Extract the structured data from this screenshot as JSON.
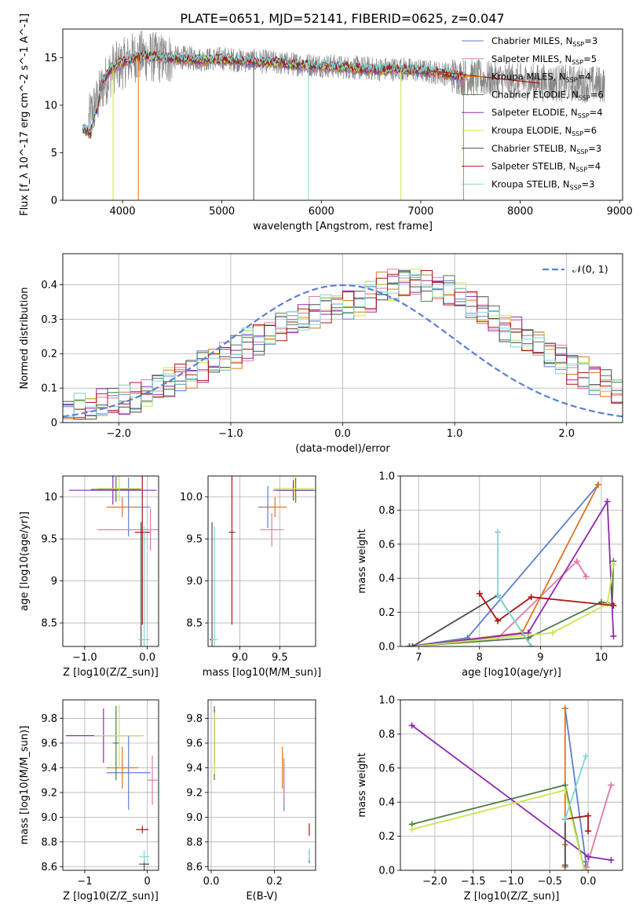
{
  "title": "PLATE=0651, MJD=52141, FIBERID=0625, z=0.047",
  "colors": {
    "Chabrier MILES": "#5b7fd6",
    "Salpeter MILES": "#e07aa8",
    "Kroupa MILES": "#e0731e",
    "Chabrier ELODIE": "#4f7a4f",
    "Salpeter ELODIE": "#8e2bb0",
    "Kroupa ELODIE": "#c9e84a",
    "Chabrier STELIB": "#4d4d4d",
    "Salpeter STELIB": "#b01414",
    "Kroupa STELIB": "#7fd6d9",
    "gauss": "#5b7fd6"
  },
  "chart_data": [
    {
      "type": "line",
      "id": "spectrum",
      "title": "PLATE=0651, MJD=52141, FIBERID=0625, z=0.047",
      "xlabel": "wavelength [Angstrom, rest frame]",
      "ylabel": "Flux [f_λ 10^-17 erg cm^-2 s^-1 A^-1]",
      "xlim": [
        3400,
        9030
      ],
      "ylim": [
        0,
        18
      ],
      "xticks": [
        4000,
        5000,
        6000,
        7000,
        8000,
        9000
      ],
      "yticks": [
        0,
        5,
        10,
        15
      ],
      "grid": false,
      "legend_position": "right",
      "legend": [
        {
          "name": "Chabrier MILES",
          "nssp": "3"
        },
        {
          "name": "Salpeter MILES",
          "nssp": "5"
        },
        {
          "name": "Kroupa MILES",
          "nssp": "4"
        },
        {
          "name": "Chabrier ELODIE",
          "nssp": "6"
        },
        {
          "name": "Salpeter ELODIE",
          "nssp": "4"
        },
        {
          "name": "Kroupa ELODIE",
          "nssp": "6"
        },
        {
          "name": "Chabrier STELIB",
          "nssp": "3"
        },
        {
          "name": "Salpeter STELIB",
          "nssp": "4"
        },
        {
          "name": "Kroupa STELIB",
          "nssp": "3"
        }
      ],
      "data_wavelength": [
        3650,
        3700,
        3750,
        3800,
        3900,
        4000,
        4100,
        4200,
        4400,
        4600,
        4800,
        5000,
        5200,
        5400,
        5600,
        5800,
        6000,
        6200,
        6400,
        6600,
        6800,
        7000,
        7200,
        7400,
        7600,
        7800,
        8000,
        8200,
        8400,
        8800
      ],
      "data_flux": [
        8.0,
        9.5,
        10.5,
        12.0,
        13.8,
        14.3,
        15.0,
        15.2,
        14.9,
        15.0,
        14.8,
        14.9,
        14.7,
        14.6,
        14.4,
        14.3,
        14.2,
        14.0,
        13.9,
        13.8,
        13.8,
        13.6,
        13.4,
        13.0,
        12.8,
        12.6,
        12.5,
        12.4,
        12.3,
        12.2
      ],
      "model_fit_range": [
        3600,
        7450
      ],
      "model_wavelength": [
        3620,
        3680,
        3700,
        3750,
        3800,
        3900,
        4000,
        4200,
        4400,
        4600,
        4800,
        5000,
        5200,
        5400,
        5600,
        5800,
        6000,
        6200,
        6400,
        6600,
        6800,
        7000,
        7200,
        7400
      ],
      "model_flux": [
        7.5,
        7.0,
        8.0,
        10.0,
        12.5,
        14.0,
        14.5,
        15.2,
        15.0,
        14.8,
        14.7,
        14.8,
        14.6,
        14.5,
        14.4,
        14.2,
        14.1,
        14.0,
        13.8,
        13.7,
        13.8,
        13.6,
        13.4,
        13.0
      ]
    },
    {
      "type": "step",
      "id": "residuals",
      "xlabel": "(data-model)/error",
      "ylabel": "Normed distribution",
      "xlim": [
        -2.5,
        2.5
      ],
      "ylim": [
        0,
        0.49
      ],
      "xticks": [
        -2,
        -1,
        0,
        1,
        2
      ],
      "yticks": [
        0.0,
        0.1,
        0.2,
        0.3,
        0.4
      ],
      "grid": true,
      "legend_position": "upper right",
      "reference": {
        "label": "𝒩(0, 1)",
        "mean": 0,
        "sigma": 1
      },
      "bin_width": 0.1,
      "hist": {
        "x_start": -2.5,
        "values": [
          0.035,
          0.04,
          0.045,
          0.05,
          0.055,
          0.065,
          0.075,
          0.085,
          0.1,
          0.115,
          0.13,
          0.145,
          0.16,
          0.175,
          0.19,
          0.205,
          0.225,
          0.24,
          0.26,
          0.275,
          0.29,
          0.305,
          0.32,
          0.335,
          0.34,
          0.345,
          0.35,
          0.37,
          0.39,
          0.4,
          0.41,
          0.41,
          0.4,
          0.39,
          0.38,
          0.36,
          0.34,
          0.32,
          0.3,
          0.28,
          0.26,
          0.245,
          0.225,
          0.2,
          0.185,
          0.16,
          0.145,
          0.125,
          0.11,
          0.095
        ]
      }
    },
    {
      "type": "errorbar",
      "id": "z-age",
      "xlabel": "Z [log10(Z/Z_sun)]",
      "ylabel": "age [log10(age/yr)]",
      "xlim": [
        -1.35,
        0.18
      ],
      "ylim": [
        8.22,
        10.25
      ],
      "xticks": [
        -1,
        0
      ],
      "yticks": [
        8.5,
        9.0,
        9.5,
        10.0
      ],
      "grid": true,
      "points": [
        {
          "series": "Chabrier MILES",
          "x": -0.3,
          "y": 9.88,
          "xerr": 0.35,
          "yerr": 0.35
        },
        {
          "series": "Salpeter MILES",
          "x": 0.05,
          "y": 9.61,
          "xerr": 0.85,
          "yerr": 0.25
        },
        {
          "series": "Kroupa MILES",
          "x": -0.4,
          "y": 9.88,
          "xerr": 0.25,
          "yerr": 0.12
        },
        {
          "series": "Chabrier ELODIE",
          "x": -0.5,
          "y": 10.09,
          "xerr": 0.4,
          "yerr": 0.15
        },
        {
          "series": "Salpeter ELODIE",
          "x": -0.55,
          "y": 10.08,
          "xerr": 0.7,
          "yerr": 0.17
        },
        {
          "series": "Kroupa ELODIE",
          "x": -0.45,
          "y": 10.1,
          "xerr": 0.35,
          "yerr": 0.15
        },
        {
          "series": "Chabrier STELIB",
          "x": -0.1,
          "y": 8.3,
          "xerr": 0.03,
          "yerr": 1.4
        },
        {
          "series": "Salpeter STELIB",
          "x": -0.08,
          "y": 9.58,
          "xerr": 0.12,
          "yerr": 1.1
        },
        {
          "series": "Kroupa STELIB",
          "x": -0.05,
          "y": 8.3,
          "xerr": 0.09,
          "yerr": 1.35
        }
      ]
    },
    {
      "type": "errorbar",
      "id": "mass-age",
      "xlabel": "mass [log10(M/M_sun)]",
      "ylabel": "",
      "xlim": [
        8.6,
        9.95
      ],
      "ylim": [
        8.22,
        10.25
      ],
      "xticks": [
        9.0,
        9.5
      ],
      "yticks": [
        8.5,
        9.0,
        9.5,
        10.0
      ],
      "grid": true,
      "points": [
        {
          "series": "Chabrier MILES",
          "x": 9.35,
          "y": 9.88,
          "xerr": 0.12,
          "yerr": 0.25
        },
        {
          "series": "Salpeter MILES",
          "x": 9.4,
          "y": 9.61,
          "xerr": 0.15,
          "yerr": 0.2
        },
        {
          "series": "Kroupa MILES",
          "x": 9.44,
          "y": 9.88,
          "xerr": 0.15,
          "yerr": 0.12
        },
        {
          "series": "Chabrier ELODIE",
          "x": 9.7,
          "y": 10.08,
          "xerr": 0.25,
          "yerr": 0.15
        },
        {
          "series": "Salpeter ELODIE",
          "x": 9.67,
          "y": 10.08,
          "xerr": 0.25,
          "yerr": 0.12
        },
        {
          "series": "Kroupa ELODIE",
          "x": 9.68,
          "y": 10.1,
          "xerr": 0.25,
          "yerr": 0.15
        },
        {
          "series": "Chabrier STELIB",
          "x": 8.65,
          "y": 8.3,
          "xerr": 0.03,
          "yerr": 1.4
        },
        {
          "series": "Salpeter STELIB",
          "x": 8.9,
          "y": 9.58,
          "xerr": 0.04,
          "yerr": 1.1
        },
        {
          "series": "Kroupa STELIB",
          "x": 8.68,
          "y": 8.3,
          "xerr": 0.04,
          "yerr": 1.35
        }
      ]
    },
    {
      "type": "line",
      "id": "age-weight",
      "xlabel": "age [log10(age/yr)]",
      "ylabel": "mass weight",
      "xlim": [
        6.7,
        10.35
      ],
      "ylim": [
        0,
        1.0
      ],
      "xticks": [
        7,
        8,
        9,
        10
      ],
      "yticks": [
        0.0,
        0.2,
        0.4,
        0.6,
        0.8,
        1.0
      ],
      "grid": true,
      "series": [
        {
          "name": "Chabrier MILES",
          "x": [
            6.85,
            7.8,
            9.95
          ],
          "y": [
            0.0,
            0.05,
            0.95
          ]
        },
        {
          "name": "Salpeter MILES",
          "x": [
            6.9,
            8.3,
            9.6,
            9.75
          ],
          "y": [
            0.0,
            0.05,
            0.5,
            0.41
          ]
        },
        {
          "name": "Kroupa MILES",
          "x": [
            6.85,
            8.7,
            9.95
          ],
          "y": [
            0.0,
            0.08,
            0.95
          ]
        },
        {
          "name": "Chabrier ELODIE",
          "x": [
            6.85,
            8.8,
            10.0,
            10.18,
            10.2
          ],
          "y": [
            0.0,
            0.05,
            0.26,
            0.25,
            0.5
          ]
        },
        {
          "name": "Salpeter ELODIE",
          "x": [
            6.85,
            8.8,
            10.1,
            10.2
          ],
          "y": [
            0.0,
            0.08,
            0.85,
            0.06
          ]
        },
        {
          "name": "Kroupa ELODIE",
          "x": [
            6.9,
            9.2,
            10.1,
            10.2
          ],
          "y": [
            0.0,
            0.08,
            0.25,
            0.48
          ]
        },
        {
          "name": "Chabrier STELIB",
          "x": [
            6.9,
            8.3,
            8.85
          ],
          "y": [
            0.0,
            0.3,
            0.0
          ]
        },
        {
          "name": "Salpeter STELIB",
          "x": [
            8.0,
            8.3,
            8.85,
            10.2
          ],
          "y": [
            0.31,
            0.15,
            0.29,
            0.24
          ]
        },
        {
          "name": "Kroupa STELIB",
          "x": [
            8.3,
            8.3,
            8.85
          ],
          "y": [
            0.67,
            0.3,
            0.0
          ]
        }
      ]
    },
    {
      "type": "errorbar",
      "id": "z-mass",
      "xlabel": "Z [log10(Z/Z_sun)]",
      "ylabel": "mass [log10(M/M_sun)]",
      "xlim": [
        -1.35,
        0.18
      ],
      "ylim": [
        8.57,
        9.95
      ],
      "xticks": [
        -1,
        0
      ],
      "yticks": [
        8.6,
        8.8,
        9.0,
        9.2,
        9.4,
        9.6,
        9.8
      ],
      "grid": true,
      "points": [
        {
          "series": "Chabrier MILES",
          "x": -0.3,
          "y": 9.36,
          "xerr": 0.35,
          "yerr": 0.3
        },
        {
          "series": "Salpeter MILES",
          "x": 0.08,
          "y": 9.3,
          "xerr": 0.08,
          "yerr": 0.2
        },
        {
          "series": "Kroupa MILES",
          "x": -0.4,
          "y": 9.4,
          "xerr": 0.25,
          "yerr": 0.17
        },
        {
          "series": "Chabrier ELODIE",
          "x": -0.5,
          "y": 9.6,
          "xerr": 0.05,
          "yerr": 0.3
        },
        {
          "series": "Salpeter ELODIE",
          "x": -0.7,
          "y": 9.66,
          "xerr": 0.6,
          "yerr": 0.22
        },
        {
          "series": "Kroupa ELODIE",
          "x": -0.45,
          "y": 9.66,
          "xerr": 0.4,
          "yerr": 0.25
        },
        {
          "series": "Chabrier STELIB",
          "x": -0.05,
          "y": 8.62,
          "xerr": 0.08,
          "yerr": 0.05
        },
        {
          "series": "Salpeter STELIB",
          "x": -0.08,
          "y": 8.9,
          "xerr": 0.1,
          "yerr": 0.03
        },
        {
          "series": "Kroupa STELIB",
          "x": -0.05,
          "y": 8.68,
          "xerr": 0.08,
          "yerr": 0.05
        }
      ]
    },
    {
      "type": "errorbar",
      "id": "ebv-mass",
      "xlabel": "E(B-V)",
      "ylabel": "",
      "xlim": [
        -0.01,
        0.33
      ],
      "ylim": [
        8.57,
        9.95
      ],
      "xticks": [
        0.0,
        0.2
      ],
      "yticks": [
        8.6,
        8.8,
        9.0,
        9.2,
        9.4,
        9.6,
        9.8
      ],
      "grid": true,
      "points": [
        {
          "series": "Chabrier MILES",
          "x": 0.23,
          "y": 9.25,
          "xerr": 0.0,
          "yerr": 0.2
        },
        {
          "series": "Salpeter MILES",
          "x": 0.23,
          "y": 9.3,
          "xerr": 0.0,
          "yerr": 0.18
        },
        {
          "series": "Kroupa MILES",
          "x": 0.225,
          "y": 9.4,
          "xerr": 0.0,
          "yerr": 0.17
        },
        {
          "series": "Chabrier ELODIE",
          "x": 0.01,
          "y": 9.6,
          "xerr": 0.0,
          "yerr": 0.3
        },
        {
          "series": "Salpeter ELODIE",
          "x": 0.01,
          "y": 9.65,
          "xerr": 0.0,
          "yerr": 0.22
        },
        {
          "series": "Kroupa ELODIE",
          "x": 0.01,
          "y": 9.6,
          "xerr": 0.0,
          "yerr": 0.25
        },
        {
          "series": "Chabrier STELIB",
          "x": 0.31,
          "y": 8.68,
          "xerr": 0.0,
          "yerr": 0.05
        },
        {
          "series": "Salpeter STELIB",
          "x": 0.31,
          "y": 8.9,
          "xerr": 0.0,
          "yerr": 0.05
        },
        {
          "series": "Kroupa STELIB",
          "x": 0.31,
          "y": 8.7,
          "xerr": 0.0,
          "yerr": 0.05
        }
      ]
    },
    {
      "type": "line",
      "id": "z-weight",
      "xlabel": "Z [log10(Z/Z_sun)]",
      "ylabel": "mass weight",
      "xlim": [
        -2.45,
        0.45
      ],
      "ylim": [
        0,
        1.0
      ],
      "xticks": [
        -2.0,
        -1.5,
        -1.0,
        -0.5,
        0.0
      ],
      "yticks": [
        0.0,
        0.2,
        0.4,
        0.6,
        0.8,
        1.0
      ],
      "grid": true,
      "series": [
        {
          "name": "Chabrier MILES",
          "x": [
            -0.3,
            -0.03,
            -0.05
          ],
          "y": [
            0.95,
            0.05,
            0.0
          ]
        },
        {
          "name": "Salpeter MILES",
          "x": [
            -0.02,
            0.3,
            0.3
          ],
          "y": [
            0.02,
            0.5,
            0.5
          ]
        },
        {
          "name": "Kroupa MILES",
          "x": [
            -0.3,
            -0.3,
            -0.3
          ],
          "y": [
            0.95,
            0.15,
            0.02
          ]
        },
        {
          "name": "Chabrier ELODIE",
          "x": [
            -2.3,
            -0.3,
            -0.05
          ],
          "y": [
            0.27,
            0.5,
            0.0
          ]
        },
        {
          "name": "Salpeter ELODIE",
          "x": [
            -2.3,
            0.0,
            0.3
          ],
          "y": [
            0.85,
            0.08,
            0.06
          ]
        },
        {
          "name": "Kroupa ELODIE",
          "x": [
            -2.3,
            -0.3,
            -0.05
          ],
          "y": [
            0.24,
            0.47,
            0.0
          ]
        },
        {
          "name": "Chabrier STELIB",
          "x": [
            -0.3,
            -0.3
          ],
          "y": [
            0.3,
            0.03
          ]
        },
        {
          "name": "Salpeter STELIB",
          "x": [
            -0.3,
            0.0,
            0.0
          ],
          "y": [
            0.3,
            0.32,
            0.23
          ]
        },
        {
          "name": "Kroupa STELIB",
          "x": [
            -0.3,
            -0.03
          ],
          "y": [
            0.3,
            0.67
          ]
        }
      ]
    }
  ]
}
